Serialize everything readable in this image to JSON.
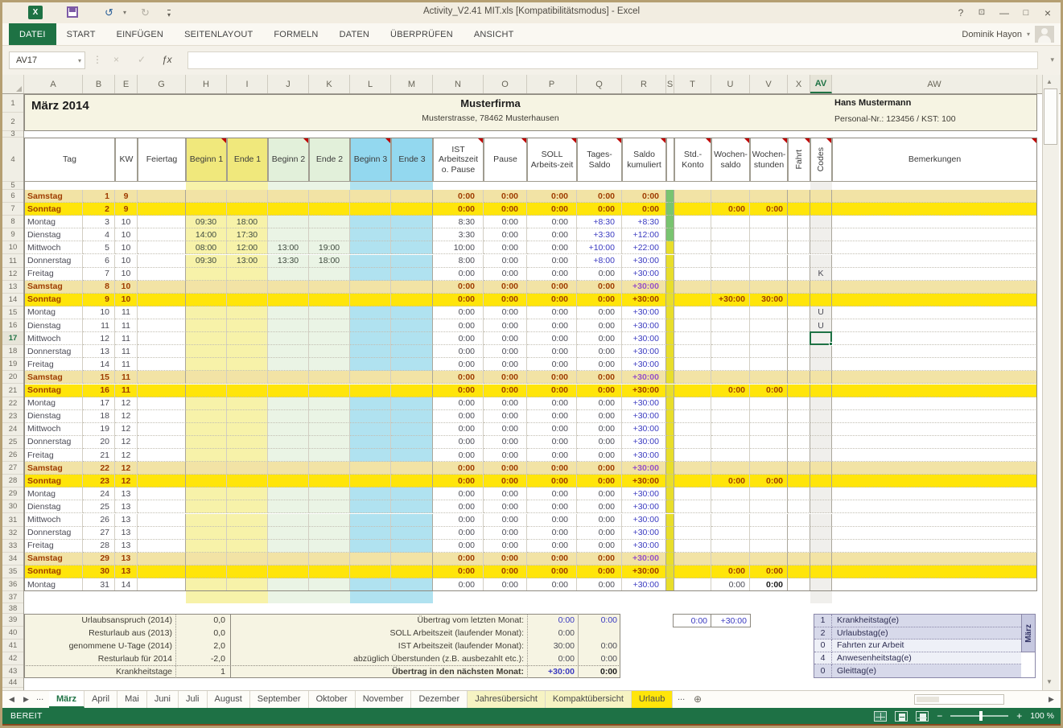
{
  "titlebar": {
    "title": "Activity_V2.41 MIT.xls  [Kompatibilitätsmodus] - Excel",
    "user": "Dominik Hayon",
    "help": "?",
    "min": "—",
    "max": "□",
    "close": "×"
  },
  "ribbon_tabs": [
    {
      "label": "DATEI",
      "active": true
    },
    {
      "label": "START"
    },
    {
      "label": "EINFÜGEN"
    },
    {
      "label": "SEITENLAYOUT"
    },
    {
      "label": "FORMELN"
    },
    {
      "label": "DATEN"
    },
    {
      "label": "ÜBERPRÜFEN"
    },
    {
      "label": "ANSICHT"
    }
  ],
  "formula_bar": {
    "name_box": "AV17",
    "fx": "ƒx"
  },
  "doc": {
    "month_title": "März 2014",
    "company": "Musterfirma",
    "address": "Musterstrasse, 78462 Musterhausen",
    "employee": "Hans Mustermann",
    "employee_id": "Personal-Nr.: 123456 / KST: 100"
  },
  "grid": {
    "active_cell": "AV17",
    "active_col": "AV",
    "active_row": 17,
    "gutter_width": 27,
    "columns": [
      [
        "A",
        73
      ],
      [
        "B",
        40
      ],
      [
        "E",
        28
      ],
      [
        "G",
        60
      ],
      [
        "H",
        51
      ],
      [
        "I",
        51
      ],
      [
        "J",
        51
      ],
      [
        "K",
        51
      ],
      [
        "L",
        51
      ],
      [
        "M",
        52
      ],
      [
        "N",
        63
      ],
      [
        "O",
        54
      ],
      [
        "P",
        62
      ],
      [
        "Q",
        56
      ],
      [
        "R",
        55
      ],
      [
        "S",
        10
      ],
      [
        "T",
        46
      ],
      [
        "U",
        48
      ],
      [
        "V",
        47
      ],
      [
        "X",
        28
      ],
      [
        "AV",
        27
      ],
      [
        "AW",
        255
      ]
    ]
  },
  "headers": {
    "tag": "Tag",
    "kw": "KW",
    "feiertag": "Feiertag",
    "b1": "Beginn 1",
    "e1": "Ende 1",
    "b2": "Beginn 2",
    "e2": "Ende 2",
    "b3": "Beginn 3",
    "e3": "Ende 3",
    "ist": "IST Arbeitszeit o. Pause",
    "pause": "Pause",
    "soll": "SOLL Arbeits-zeit",
    "tages": "Tages-Saldo",
    "saldo": "Saldo kumuliert",
    "std": "Std.-Konto",
    "ws": "Wochen-saldo",
    "wh": "Wochen-stunden",
    "fahrt": "Fahrt",
    "codes": "Codes",
    "bem": "Bemerkungen"
  },
  "comment_cols": [
    "H",
    "J",
    "L",
    "N",
    "O",
    "P",
    "Q",
    "R",
    "T",
    "U",
    "V",
    "X",
    "AV",
    "AW"
  ],
  "defaults": {
    "ist": "0:00",
    "pause": "0:00",
    "soll": "0:00",
    "tages": "0:00"
  },
  "rows": [
    {
      "n": 6,
      "w": "Samstag",
      "d": "1",
      "kw": "9",
      "t": "sa",
      "sk": "0:00",
      "s": "g"
    },
    {
      "n": 7,
      "w": "Sonntag",
      "d": "2",
      "kw": "9",
      "t": "so",
      "sk": "0:00",
      "ws": "0:00",
      "wh": "0:00",
      "s": "g"
    },
    {
      "n": 8,
      "w": "Montag",
      "d": "3",
      "kw": "10",
      "t": "wd",
      "b1": "09:30",
      "e1": "18:00",
      "ist": "8:30",
      "tg": "+8:30",
      "sk": "+8:30",
      "s": "g"
    },
    {
      "n": 9,
      "w": "Dienstag",
      "d": "4",
      "kw": "10",
      "t": "wd",
      "b1": "14:00",
      "e1": "17:30",
      "ist": "3:30",
      "tg": "+3:30",
      "sk": "+12:00",
      "s": "g"
    },
    {
      "n": 10,
      "w": "Mittwoch",
      "d": "5",
      "kw": "10",
      "t": "wd",
      "b1": "08:00",
      "e1": "12:00",
      "b2": "13:00",
      "e2": "19:00",
      "ist": "10:00",
      "tg": "+10:00",
      "sk": "+22:00",
      "s": "y"
    },
    {
      "n": 11,
      "w": "Donnerstag",
      "d": "6",
      "kw": "10",
      "t": "wd",
      "b1": "09:30",
      "e1": "13:00",
      "b2": "13:30",
      "e2": "18:00",
      "ist": "8:00",
      "tg": "+8:00",
      "sk": "+30:00",
      "s": "y"
    },
    {
      "n": 12,
      "w": "Freitag",
      "d": "7",
      "kw": "10",
      "t": "wd",
      "sk": "+30:00",
      "co": "K",
      "s": "y"
    },
    {
      "n": 13,
      "w": "Samstag",
      "d": "8",
      "kw": "10",
      "t": "sa",
      "sk": "+30:00",
      "s": "y"
    },
    {
      "n": 14,
      "w": "Sonntag",
      "d": "9",
      "kw": "10",
      "t": "so",
      "sk": "+30:00",
      "ws": "+30:00",
      "wh": "30:00",
      "s": "y"
    },
    {
      "n": 15,
      "w": "Montag",
      "d": "10",
      "kw": "11",
      "t": "wd",
      "sk": "+30:00",
      "co": "U",
      "s": "y"
    },
    {
      "n": 16,
      "w": "Dienstag",
      "d": "11",
      "kw": "11",
      "t": "wd",
      "sk": "+30:00",
      "co": "U",
      "s": "y"
    },
    {
      "n": 17,
      "w": "Mittwoch",
      "d": "12",
      "kw": "11",
      "t": "wd",
      "sk": "+30:00",
      "s": "y"
    },
    {
      "n": 18,
      "w": "Donnerstag",
      "d": "13",
      "kw": "11",
      "t": "wd",
      "sk": "+30:00",
      "s": "y"
    },
    {
      "n": 19,
      "w": "Freitag",
      "d": "14",
      "kw": "11",
      "t": "wd",
      "sk": "+30:00",
      "s": "y"
    },
    {
      "n": 20,
      "w": "Samstag",
      "d": "15",
      "kw": "11",
      "t": "sa",
      "sk": "+30:00",
      "s": "y"
    },
    {
      "n": 21,
      "w": "Sonntag",
      "d": "16",
      "kw": "11",
      "t": "so",
      "sk": "+30:00",
      "ws": "0:00",
      "wh": "0:00",
      "s": "y"
    },
    {
      "n": 22,
      "w": "Montag",
      "d": "17",
      "kw": "12",
      "t": "wd",
      "sk": "+30:00",
      "s": "y"
    },
    {
      "n": 23,
      "w": "Dienstag",
      "d": "18",
      "kw": "12",
      "t": "wd",
      "sk": "+30:00",
      "s": "y"
    },
    {
      "n": 24,
      "w": "Mittwoch",
      "d": "19",
      "kw": "12",
      "t": "wd",
      "sk": "+30:00",
      "s": "y"
    },
    {
      "n": 25,
      "w": "Donnerstag",
      "d": "20",
      "kw": "12",
      "t": "wd",
      "sk": "+30:00",
      "s": "y"
    },
    {
      "n": 26,
      "w": "Freitag",
      "d": "21",
      "kw": "12",
      "t": "wd",
      "sk": "+30:00",
      "s": "y"
    },
    {
      "n": 27,
      "w": "Samstag",
      "d": "22",
      "kw": "12",
      "t": "sa",
      "sk": "+30:00",
      "s": "y"
    },
    {
      "n": 28,
      "w": "Sonntag",
      "d": "23",
      "kw": "12",
      "t": "so",
      "sk": "+30:00",
      "ws": "0:00",
      "wh": "0:00",
      "s": "y"
    },
    {
      "n": 29,
      "w": "Montag",
      "d": "24",
      "kw": "13",
      "t": "wd",
      "sk": "+30:00",
      "s": "y"
    },
    {
      "n": 30,
      "w": "Dienstag",
      "d": "25",
      "kw": "13",
      "t": "wd",
      "sk": "+30:00",
      "s": "y"
    },
    {
      "n": 31,
      "w": "Mittwoch",
      "d": "26",
      "kw": "13",
      "t": "wd",
      "sk": "+30:00",
      "s": "y"
    },
    {
      "n": 32,
      "w": "Donnerstag",
      "d": "27",
      "kw": "13",
      "t": "wd",
      "sk": "+30:00",
      "s": "y"
    },
    {
      "n": 33,
      "w": "Freitag",
      "d": "28",
      "kw": "13",
      "t": "wd",
      "sk": "+30:00",
      "s": "y"
    },
    {
      "n": 34,
      "w": "Samstag",
      "d": "29",
      "kw": "13",
      "t": "sa",
      "sk": "+30:00",
      "s": "y"
    },
    {
      "n": 35,
      "w": "Sonntag",
      "d": "30",
      "kw": "13",
      "t": "so",
      "sk": "+30:00",
      "ws": "0:00",
      "wh": "0:00",
      "s": "y"
    },
    {
      "n": 36,
      "w": "Montag",
      "d": "31",
      "kw": "14",
      "t": "wd",
      "sk": "+30:00",
      "ws": "0:00",
      "wh": "0:00",
      "s": "y"
    }
  ],
  "summary_left": [
    {
      "label": "Urlaubsanspruch (2014)",
      "value": "0,0"
    },
    {
      "label": "Resturlaub aus (2013)",
      "value": "0,0"
    },
    {
      "label": "genommene U-Tage (2014)",
      "value": "2,0"
    },
    {
      "label": "Resturlaub für 2014",
      "value": "-2,0"
    },
    {
      "label": "Krankheitstage",
      "value": "1"
    }
  ],
  "summary_mid": [
    {
      "label": "Übertrag vom letzten Monat:",
      "v1": "0:00",
      "v2": "0:00",
      "c1": "blue",
      "c2": "blue"
    },
    {
      "label": "SOLL Arbeitszeit (laufender Monat):",
      "v1": "0:00",
      "v2": "",
      "c1": "gray",
      "c2": "gray"
    },
    {
      "label": "IST Arbeitszeit (laufender Monat):",
      "v1": "30:00",
      "v2": "0:00",
      "c1": "gray",
      "c2": "gray"
    },
    {
      "label": "abzüglich Überstunden (z.B. ausbezahlt etc.):",
      "v1": "0:00",
      "v2": "0:00",
      "c1": "gray",
      "c2": "gray"
    },
    {
      "label": "Übertrag in den nächsten Monat:",
      "v1": "+30:00",
      "v2": "0:00",
      "c1": "blue",
      "c2": "dark",
      "bold": true
    }
  ],
  "summary_box": {
    "v1": "0:00",
    "v2": "+30:00"
  },
  "legend": [
    {
      "n": "1",
      "label": "Krankheitstag(e)",
      "bg": "lav"
    },
    {
      "n": "2",
      "label": "Urlaubstag(e)",
      "bg": "lav"
    },
    {
      "n": "0",
      "label": "Fahrten zur Arbeit",
      "bg": "lt"
    },
    {
      "n": "4",
      "label": "Anwesenheitstag(e)",
      "bg": "lt"
    },
    {
      "n": "0",
      "label": "Gleittag(e)",
      "bg": "lav"
    }
  ],
  "legend_month": "März",
  "sheet_tabs": {
    "overflow_left": "...",
    "overflow_right": "...",
    "tabs": [
      {
        "label": "März",
        "style": "active"
      },
      {
        "label": "April"
      },
      {
        "label": "Mai"
      },
      {
        "label": "Juni"
      },
      {
        "label": "Juli"
      },
      {
        "label": "August"
      },
      {
        "label": "September"
      },
      {
        "label": "Oktober"
      },
      {
        "label": "November"
      },
      {
        "label": "Dezember"
      },
      {
        "label": "Jahresübersicht",
        "style": "pale"
      },
      {
        "label": "Kompaktübersicht",
        "style": "pale"
      },
      {
        "label": "Urlaub",
        "style": "yellow"
      }
    ]
  },
  "statusbar": {
    "mode": "BEREIT",
    "zoom": "100 %"
  }
}
